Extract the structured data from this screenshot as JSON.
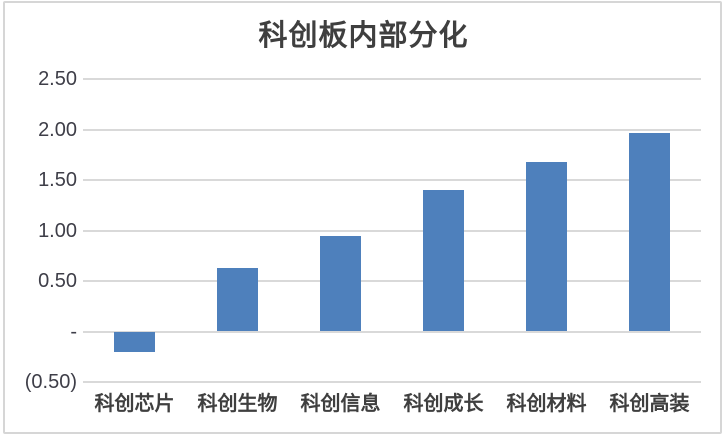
{
  "title": "科创板内部分化",
  "chart_data": {
    "type": "bar",
    "title": "科创板内部分化",
    "categories": [
      "科创芯片",
      "科创生物",
      "科创信息",
      "科创成长",
      "科创材料",
      "科创高装"
    ],
    "values": [
      -0.2,
      0.63,
      0.95,
      1.4,
      1.68,
      1.97
    ],
    "xlabel": "",
    "ylabel": "",
    "ylim": [
      -0.5,
      2.5
    ],
    "yticks": [
      {
        "value": 2.5,
        "label": "2.50"
      },
      {
        "value": 2.0,
        "label": "2.00"
      },
      {
        "value": 1.5,
        "label": "1.50"
      },
      {
        "value": 1.0,
        "label": "1.00"
      },
      {
        "value": 0.5,
        "label": "0.50"
      },
      {
        "value": 0.0,
        "label": "-"
      },
      {
        "value": -0.5,
        "label": "(0.50)"
      }
    ],
    "grid": true,
    "legend": "none",
    "colors": {
      "bar": "#4e80bc",
      "gridline": "#d9d9d9",
      "title_text": "#3f3f3f",
      "axis_text": "#3e3e48",
      "frame_border": "#d6d6d6",
      "background": "#ffffff"
    }
  }
}
